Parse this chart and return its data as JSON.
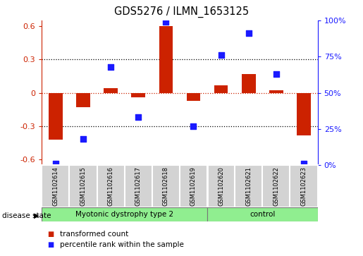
{
  "title": "GDS5276 / ILMN_1653125",
  "samples": [
    "GSM1102614",
    "GSM1102615",
    "GSM1102616",
    "GSM1102617",
    "GSM1102618",
    "GSM1102619",
    "GSM1102620",
    "GSM1102621",
    "GSM1102622",
    "GSM1102623"
  ],
  "red_values": [
    -0.42,
    -0.13,
    0.04,
    -0.04,
    0.6,
    -0.07,
    0.07,
    0.17,
    0.02,
    -0.38
  ],
  "blue_values_pct": [
    1,
    18,
    68,
    33,
    99,
    27,
    76,
    91,
    63,
    1
  ],
  "ylim_left": [
    -0.65,
    0.65
  ],
  "ylim_right": [
    0,
    100
  ],
  "yticks_left": [
    -0.6,
    -0.3,
    0.0,
    0.3,
    0.6
  ],
  "yticks_right": [
    0,
    25,
    50,
    75,
    100
  ],
  "ytick_labels_left": [
    "-0.6",
    "-0.3",
    "0",
    "0.3",
    "0.6"
  ],
  "ytick_labels_right": [
    "0%",
    "25%",
    "50%",
    "75%",
    "100%"
  ],
  "hline_dotted_black": [
    0.3,
    -0.3
  ],
  "red_hline_y": 0.0,
  "group1_label": "Myotonic dystrophy type 2",
  "group1_count": 6,
  "group2_label": "control",
  "group2_count": 4,
  "group_color": "#90ee90",
  "sample_box_color": "#d3d3d3",
  "disease_state_label": "disease state",
  "legend": [
    {
      "label": "transformed count",
      "color": "#cc2200"
    },
    {
      "label": "percentile rank within the sample",
      "color": "#1a1aff"
    }
  ],
  "bar_color": "#cc2200",
  "dot_color": "#1a1aff",
  "bar_width": 0.5,
  "dot_size": 30
}
